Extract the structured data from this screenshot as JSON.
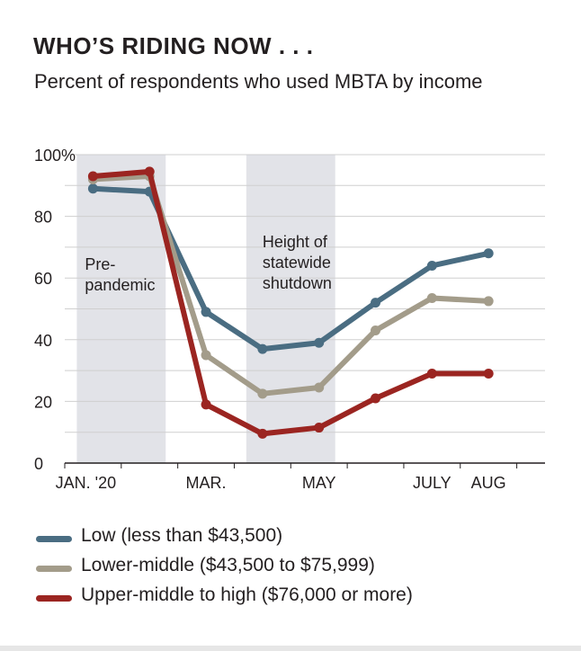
{
  "header": {
    "title": "WHO’S RIDING NOW . . .",
    "subtitle": "Percent of respondents who used MBTA by income"
  },
  "chart_data": {
    "type": "line",
    "title": "WHO’S RIDING NOW . . .",
    "subtitle": "Percent of respondents who used MBTA by income",
    "xlabel": "",
    "ylabel": "",
    "ylim": [
      0,
      100
    ],
    "yticks": [
      "100%",
      "80",
      "60",
      "40",
      "20",
      "0"
    ],
    "ytick_values": [
      100,
      80,
      60,
      40,
      20,
      0
    ],
    "xticks": [
      {
        "label": "JAN. '20",
        "x": 1
      },
      {
        "label": "MAR.",
        "x": 3
      },
      {
        "label": "MAY",
        "x": 5
      },
      {
        "label": "JULY",
        "x": 7
      },
      {
        "label": "AUG",
        "x": 8
      }
    ],
    "xlim": [
      0.5,
      9
    ],
    "x": [
      1,
      2,
      3,
      4,
      5,
      6,
      7,
      8
    ],
    "grid": true,
    "shaded_periods": [
      {
        "label": "Pre-\npandemic",
        "x_start": 1,
        "x_end": 2
      },
      {
        "label": "Height of\nstatewide\nshutdown",
        "x_start": 4,
        "x_end": 5
      }
    ],
    "series": [
      {
        "name": "Low (less than $43,500)",
        "color": "#4a6d82",
        "values": [
          89,
          88,
          49,
          37,
          39,
          52,
          64,
          68
        ]
      },
      {
        "name": "Lower-middle ($43,500 to $75,999)",
        "color": "#a39c8a",
        "values": [
          92,
          93,
          35,
          22.5,
          24.5,
          43,
          53.5,
          52.5
        ]
      },
      {
        "name": "Upper-middle to high ($76,000 or more)",
        "color": "#9b2521",
        "values": [
          93,
          94.5,
          19,
          9.5,
          11.5,
          21,
          29,
          29
        ]
      }
    ],
    "legend_position": "bottom"
  },
  "colors": {
    "shade": "#e2e3e8",
    "grid": "#cfcfcf",
    "axis": "#231f20",
    "text": "#231f20"
  }
}
